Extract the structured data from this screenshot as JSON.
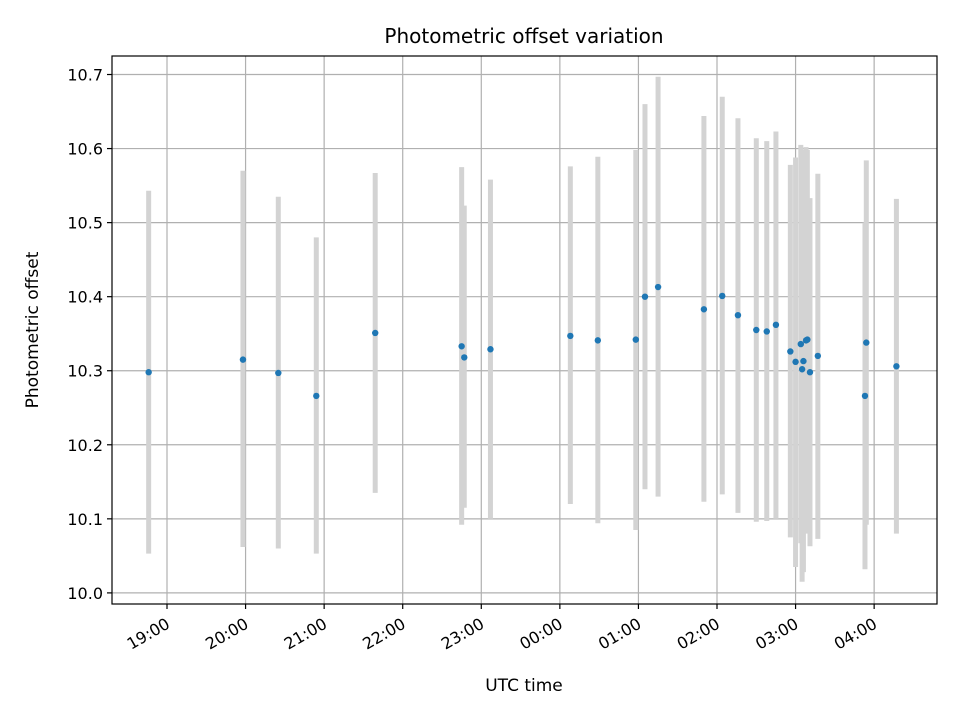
{
  "chart_data": {
    "type": "scatter",
    "title": "Photometric offset variation",
    "xlabel": "UTC time",
    "ylabel": "Photometric offset",
    "x_unit": "UTC time of night (hours crossing midnight)",
    "xlim": [
      "18:18",
      "04:48"
    ],
    "ylim": [
      9.985,
      10.725
    ],
    "x_tick_labels": [
      "19:00",
      "20:00",
      "21:00",
      "22:00",
      "23:00",
      "00:00",
      "01:00",
      "02:00",
      "03:00",
      "04:00"
    ],
    "y_ticks": [
      10.0,
      10.1,
      10.2,
      10.3,
      10.4,
      10.5,
      10.6,
      10.7
    ],
    "y_tick_labels": [
      "10.0",
      "10.1",
      "10.2",
      "10.3",
      "10.4",
      "10.5",
      "10.6",
      "10.7"
    ],
    "grid": true,
    "colors": {
      "point": "#1f77b4",
      "errorbar": "#d3d3d3",
      "grid": "#b0b0b0"
    },
    "points": [
      {
        "x": "18:46",
        "y": 10.298,
        "low": 10.053,
        "high": 10.543
      },
      {
        "x": "19:58",
        "y": 10.315,
        "low": 10.062,
        "high": 10.57
      },
      {
        "x": "20:25",
        "y": 10.297,
        "low": 10.06,
        "high": 10.535
      },
      {
        "x": "20:54",
        "y": 10.266,
        "low": 10.053,
        "high": 10.48
      },
      {
        "x": "21:39",
        "y": 10.351,
        "low": 10.135,
        "high": 10.567
      },
      {
        "x": "22:45",
        "y": 10.333,
        "low": 10.092,
        "high": 10.575
      },
      {
        "x": "22:47",
        "y": 10.318,
        "low": 10.115,
        "high": 10.523
      },
      {
        "x": "23:07",
        "y": 10.329,
        "low": 10.1,
        "high": 10.558
      },
      {
        "x": "00:08",
        "y": 10.347,
        "low": 10.12,
        "high": 10.576
      },
      {
        "x": "00:29",
        "y": 10.341,
        "low": 10.094,
        "high": 10.589
      },
      {
        "x": "00:58",
        "y": 10.342,
        "low": 10.085,
        "high": 10.598
      },
      {
        "x": "01:05",
        "y": 10.4,
        "low": 10.14,
        "high": 10.66
      },
      {
        "x": "01:15",
        "y": 10.413,
        "low": 10.13,
        "high": 10.697
      },
      {
        "x": "01:50",
        "y": 10.383,
        "low": 10.123,
        "high": 10.644
      },
      {
        "x": "02:04",
        "y": 10.401,
        "low": 10.133,
        "high": 10.67
      },
      {
        "x": "02:16",
        "y": 10.375,
        "low": 10.108,
        "high": 10.641
      },
      {
        "x": "02:30",
        "y": 10.355,
        "low": 10.096,
        "high": 10.614
      },
      {
        "x": "02:38",
        "y": 10.353,
        "low": 10.097,
        "high": 10.61
      },
      {
        "x": "02:45",
        "y": 10.362,
        "low": 10.1,
        "high": 10.623
      },
      {
        "x": "02:56",
        "y": 10.326,
        "low": 10.075,
        "high": 10.578
      },
      {
        "x": "03:00",
        "y": 10.312,
        "low": 10.035,
        "high": 10.588
      },
      {
        "x": "03:04",
        "y": 10.336,
        "low": 10.067,
        "high": 10.605
      },
      {
        "x": "03:05",
        "y": 10.302,
        "low": 10.015,
        "high": 10.59
      },
      {
        "x": "03:06",
        "y": 10.313,
        "low": 10.028,
        "high": 10.598
      },
      {
        "x": "03:08",
        "y": 10.341,
        "low": 10.08,
        "high": 10.602
      },
      {
        "x": "03:09",
        "y": 10.342,
        "low": 10.085,
        "high": 10.598
      },
      {
        "x": "03:11",
        "y": 10.298,
        "low": 10.063,
        "high": 10.533
      },
      {
        "x": "03:17",
        "y": 10.32,
        "low": 10.073,
        "high": 10.566
      },
      {
        "x": "03:53",
        "y": 10.266,
        "low": 10.032,
        "high": 10.5
      },
      {
        "x": "03:54",
        "y": 10.338,
        "low": 10.092,
        "high": 10.584
      },
      {
        "x": "04:17",
        "y": 10.306,
        "low": 10.08,
        "high": 10.532
      }
    ]
  }
}
